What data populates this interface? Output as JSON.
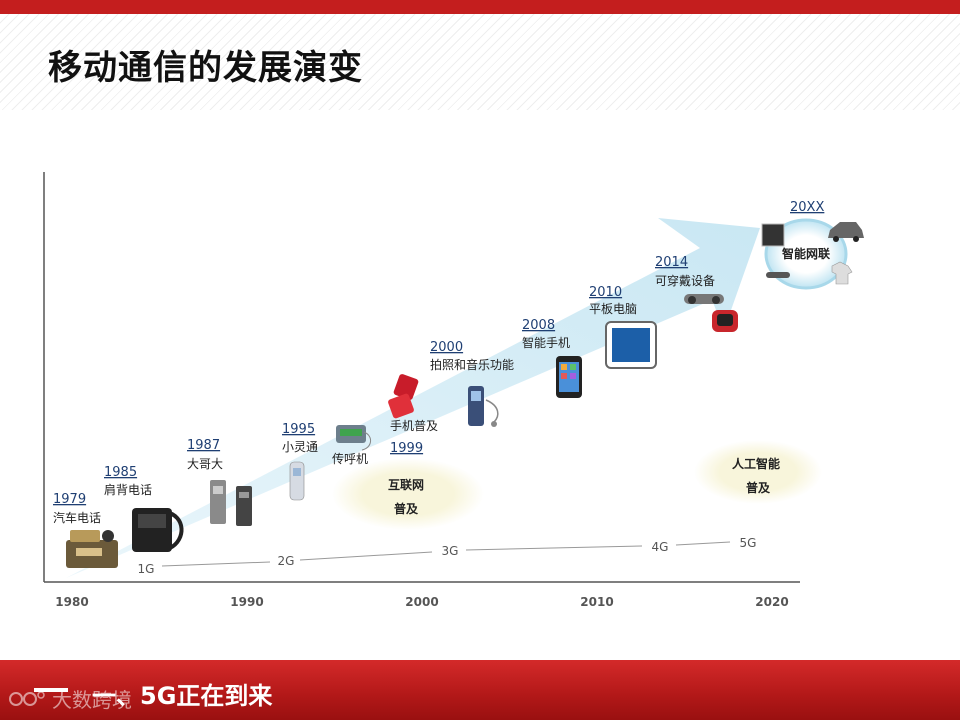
{
  "slide": {
    "title": "移动通信的发展演变",
    "section_title": "一、5G正在到来",
    "watermark": "大数跨境"
  },
  "colors": {
    "brand_red": "#c41e1e",
    "arrow_fill": "#d7eef7",
    "label_blue": "#1f3f73",
    "bubble_fill": "#f6f3d6"
  },
  "timeline": {
    "axis_years": [
      "1980",
      "1990",
      "2000",
      "2010",
      "2020"
    ],
    "generations": [
      "1G",
      "2G",
      "3G",
      "4G",
      "5G"
    ],
    "milestones": [
      {
        "year": "1979",
        "label": "汽车电话",
        "icon": "car-phone-icon"
      },
      {
        "year": "1985",
        "label": "肩背电话",
        "icon": "bag-phone-icon"
      },
      {
        "year": "1987",
        "label": "大哥大",
        "icon": "brick-phone-icon"
      },
      {
        "year": "1995",
        "label": "小灵通",
        "icon": "phs-phone-icon"
      },
      {
        "year": "",
        "label": "传呼机",
        "icon": "pager-icon"
      },
      {
        "year": "1999",
        "label": "手机普及",
        "icon": "flip-phone-icon"
      },
      {
        "year": "2000",
        "label": "拍照和音乐功能",
        "icon": "music-phone-icon"
      },
      {
        "year": "2008",
        "label": "智能手机",
        "icon": "smartphone-icon"
      },
      {
        "year": "2010",
        "label": "平板电脑",
        "icon": "tablet-icon"
      },
      {
        "year": "2014",
        "label": "可穿戴设备",
        "icon": "wearable-icon"
      },
      {
        "year": "20XX",
        "label": "智能网联",
        "icon": "iot-icon"
      }
    ],
    "bubbles": [
      {
        "line1": "互联网",
        "line2": "普及"
      },
      {
        "line1": "人工智能",
        "line2": "普及"
      }
    ]
  }
}
